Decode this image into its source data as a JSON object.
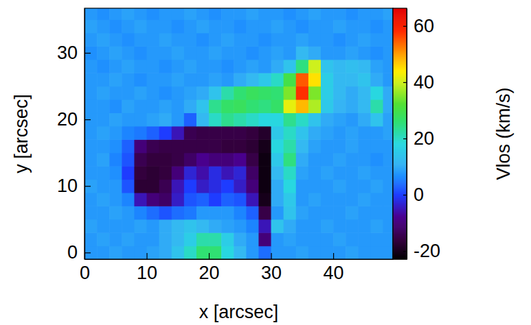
{
  "chart_data": {
    "type": "heatmap",
    "xlabel": "x [arcsec]",
    "ylabel": "y [arcsec]",
    "x": [
      1,
      3,
      5,
      7,
      9,
      11,
      13,
      15,
      17,
      19,
      21,
      23,
      25,
      27,
      29,
      31,
      33,
      35,
      37,
      39,
      41,
      43,
      45,
      47,
      49
    ],
    "y": [
      0,
      2,
      4,
      6,
      8,
      10,
      12,
      14,
      16,
      18,
      20,
      22,
      24,
      26,
      28,
      30,
      32,
      34,
      36
    ],
    "z": [
      [
        8,
        8,
        9,
        8,
        8,
        9,
        10,
        14,
        20,
        26,
        26,
        18,
        12,
        8,
        4,
        8,
        8,
        9,
        8,
        8,
        8,
        9,
        8,
        8,
        8
      ],
      [
        8,
        9,
        8,
        9,
        8,
        8,
        10,
        12,
        16,
        22,
        22,
        16,
        10,
        8,
        -10,
        8,
        9,
        8,
        8,
        8,
        9,
        8,
        8,
        8,
        8
      ],
      [
        9,
        8,
        8,
        8,
        9,
        8,
        10,
        12,
        14,
        12,
        10,
        9,
        8,
        6,
        -5,
        14,
        10,
        8,
        8,
        9,
        8,
        8,
        8,
        9,
        8
      ],
      [
        8,
        8,
        9,
        8,
        6,
        4,
        2,
        4,
        5,
        8,
        8,
        8,
        6,
        3,
        -15,
        8,
        14,
        9,
        8,
        8,
        8,
        9,
        8,
        8,
        8
      ],
      [
        8,
        9,
        8,
        6,
        -5,
        -10,
        -12,
        -4,
        2,
        3,
        0,
        3,
        2,
        -5,
        -20,
        10,
        15,
        8,
        9,
        8,
        8,
        8,
        9,
        8,
        8
      ],
      [
        9,
        8,
        8,
        2,
        -17,
        -17,
        -14,
        -5,
        0,
        -4,
        -2,
        0,
        -4,
        -10,
        -21,
        10,
        18,
        8,
        8,
        8,
        9,
        8,
        8,
        9,
        8
      ],
      [
        8,
        8,
        7,
        0,
        -16,
        -17,
        -16,
        -10,
        -3,
        -6,
        -2,
        -5,
        -3,
        -12,
        -21,
        12,
        20,
        9,
        8,
        9,
        8,
        8,
        9,
        8,
        8
      ],
      [
        8,
        9,
        6,
        2,
        -14,
        -16,
        -16,
        -15,
        -12,
        -8,
        -10,
        -10,
        -8,
        -15,
        -21,
        15,
        25,
        10,
        8,
        8,
        9,
        8,
        8,
        7,
        8
      ],
      [
        8,
        8,
        7,
        3,
        -10,
        -14,
        -15,
        -15,
        -15,
        -15,
        -15,
        -16,
        -16,
        -17,
        -20,
        18,
        22,
        12,
        9,
        8,
        8,
        9,
        8,
        8,
        8
      ],
      [
        8,
        9,
        8,
        6,
        5,
        3,
        0,
        -5,
        -14,
        -15,
        -15,
        -15,
        -15,
        -16,
        -18,
        15,
        20,
        14,
        10,
        9,
        8,
        9,
        8,
        8,
        9
      ],
      [
        8,
        8,
        9,
        8,
        8,
        9,
        10,
        8,
        3,
        12,
        20,
        24,
        22,
        20,
        18,
        18,
        24,
        20,
        14,
        10,
        9,
        8,
        10,
        14,
        9
      ],
      [
        8,
        8,
        7,
        9,
        8,
        8,
        9,
        8,
        10,
        14,
        24,
        27,
        28,
        26,
        25,
        27,
        42,
        48,
        38,
        15,
        11,
        10,
        12,
        22,
        10
      ],
      [
        8,
        9,
        8,
        8,
        9,
        8,
        7,
        8,
        9,
        10,
        14,
        22,
        26,
        28,
        27,
        26,
        35,
        58,
        35,
        16,
        12,
        10,
        12,
        18,
        10
      ],
      [
        8,
        8,
        9,
        8,
        7,
        8,
        8,
        9,
        8,
        8,
        9,
        8,
        10,
        12,
        15,
        20,
        30,
        55,
        45,
        16,
        12,
        12,
        14,
        10,
        8
      ],
      [
        8,
        7,
        8,
        9,
        8,
        8,
        7,
        8,
        9,
        8,
        8,
        7,
        8,
        9,
        8,
        10,
        14,
        25,
        40,
        14,
        12,
        13,
        12,
        9,
        8
      ],
      [
        7,
        8,
        9,
        8,
        7,
        8,
        8,
        9,
        8,
        8,
        9,
        8,
        8,
        7,
        8,
        9,
        8,
        12,
        10,
        8,
        8,
        9,
        8,
        7,
        8
      ],
      [
        8,
        9,
        8,
        7,
        8,
        8,
        9,
        8,
        8,
        7,
        8,
        9,
        8,
        8,
        7,
        8,
        8,
        9,
        8,
        8,
        7,
        8,
        9,
        8,
        8
      ],
      [
        9,
        8,
        7,
        8,
        9,
        8,
        8,
        7,
        8,
        9,
        8,
        8,
        7,
        8,
        8,
        9,
        8,
        7,
        8,
        8,
        9,
        8,
        8,
        7,
        8
      ],
      [
        8,
        7,
        8,
        9,
        8,
        7,
        8,
        8,
        9,
        8,
        7,
        8,
        8,
        9,
        8,
        8,
        7,
        8,
        9,
        8,
        8,
        7,
        8,
        8,
        9
      ]
    ],
    "xlim": [
      0,
      49.6
    ],
    "ylim": [
      -1,
      36.7
    ],
    "xticks": [
      0,
      10,
      20,
      30,
      40
    ],
    "yticks": [
      0,
      10,
      20,
      30
    ],
    "colorbar": {
      "label": "Vlos (km/s)",
      "range": [
        -22.9,
        66.3
      ],
      "ticks": [
        -20,
        0,
        20,
        40,
        60
      ]
    }
  }
}
